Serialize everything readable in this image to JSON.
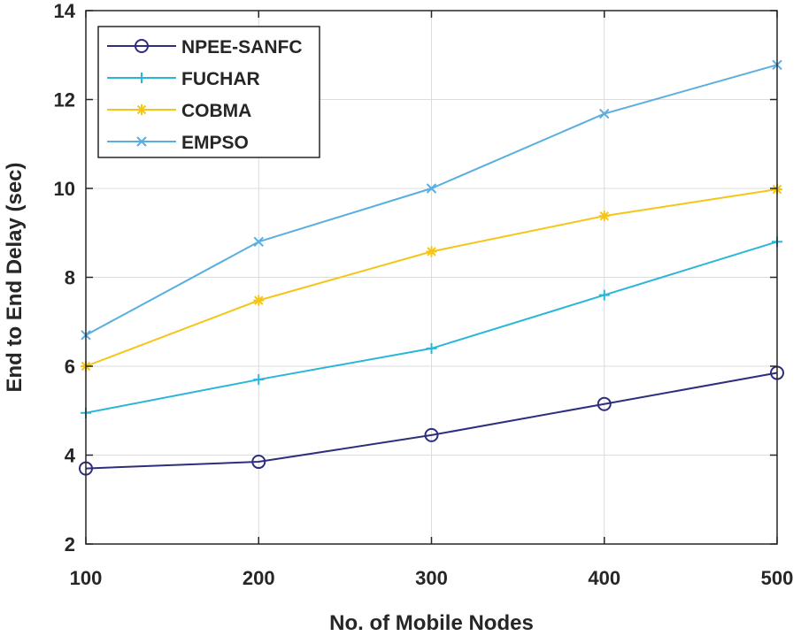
{
  "chart_data": {
    "type": "line",
    "title": "",
    "xlabel": "No. of Mobile Nodes",
    "ylabel": "End to End Delay (sec)",
    "x": [
      100,
      200,
      300,
      400,
      500
    ],
    "xlim": [
      100,
      500
    ],
    "ylim": [
      2,
      14
    ],
    "xticks": [
      100,
      200,
      300,
      400,
      500
    ],
    "yticks": [
      2,
      4,
      6,
      8,
      10,
      12,
      14
    ],
    "grid": true,
    "legend_position": "top-left",
    "series": [
      {
        "name": "NPEE-SANFC",
        "marker": "circle",
        "color": "#2e2e7e",
        "values": [
          3.7,
          3.85,
          4.45,
          5.15,
          5.85
        ]
      },
      {
        "name": "FUCHAR",
        "marker": "plus",
        "color": "#29b6d8",
        "values": [
          4.95,
          5.7,
          6.4,
          7.6,
          8.8
        ]
      },
      {
        "name": "COBMA",
        "marker": "asterisk",
        "color": "#f5c518",
        "values": [
          6.0,
          7.48,
          8.58,
          9.38,
          9.98
        ]
      },
      {
        "name": "EMPSO",
        "marker": "x",
        "color": "#5aaee0",
        "values": [
          6.7,
          8.8,
          10.0,
          11.68,
          12.78
        ]
      }
    ]
  }
}
